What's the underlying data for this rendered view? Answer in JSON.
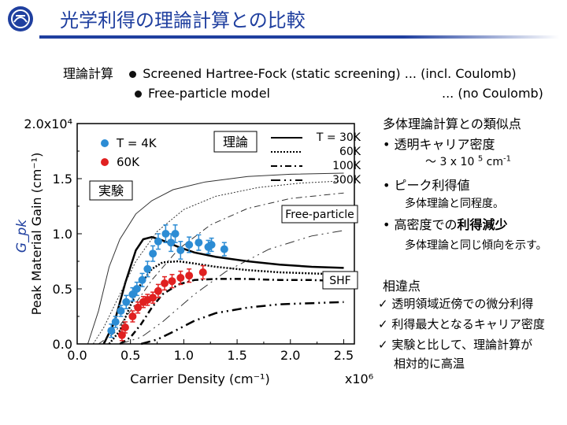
{
  "header": {
    "title": "光学利得の理論計算との比較"
  },
  "models": {
    "label": "理論計算",
    "shf": {
      "text": "Screened Hartree-Fock (static screening) ... (incl. Coulomb)"
    },
    "free": {
      "text": "Free-particle model",
      "note": "... (no Coulomb)"
    }
  },
  "chart_data": {
    "type": "line+scatter",
    "xlabel": "Carrier Density (cm⁻¹)",
    "ylabel": "Peak Material Gain (cm⁻¹)",
    "ylabel_symbol": "G_pk",
    "x_multiplier": "x10⁶",
    "y_multiplier_label": "2.0x10⁴",
    "xlim": [
      0,
      2.6
    ],
    "ylim": [
      0,
      2.0
    ],
    "xticks": [
      "0.0",
      "0.5",
      "1.0",
      "1.5",
      "2.0",
      "2.5"
    ],
    "yticks": [
      "0.0",
      "0.5",
      "1.0",
      "1.5",
      "2.0x10⁴"
    ],
    "theory_legend": {
      "title": "理論",
      "items": [
        "T = 30K",
        "60K",
        "100K",
        "300K"
      ]
    },
    "experiment_legend": {
      "title": "実験",
      "items": [
        {
          "label": "T = 4K",
          "color": "#2c8cd4"
        },
        {
          "label": "60K",
          "color": "#e02020"
        }
      ]
    },
    "labels": {
      "free_particle": "Free-particle",
      "shf": "SHF"
    },
    "experiment": [
      {
        "name": "T = 4K",
        "color": "#2c8cd4",
        "x": [
          0.32,
          0.36,
          0.41,
          0.46,
          0.52,
          0.56,
          0.61,
          0.66,
          0.71,
          0.76,
          0.83,
          0.88,
          0.92,
          0.97,
          1.05,
          1.14,
          1.23,
          1.26,
          1.38
        ],
        "y": [
          0.12,
          0.2,
          0.3,
          0.38,
          0.45,
          0.5,
          0.58,
          0.68,
          0.82,
          0.93,
          1.0,
          0.92,
          1.0,
          0.85,
          0.9,
          0.92,
          0.88,
          0.9,
          0.86
        ],
        "err": [
          0.06,
          0.05,
          0.05,
          0.06,
          0.06,
          0.06,
          0.06,
          0.07,
          0.07,
          0.07,
          0.08,
          0.08,
          0.08,
          0.08,
          0.07,
          0.07,
          0.06,
          0.06,
          0.06
        ]
      },
      {
        "name": "60K",
        "color": "#e02020",
        "x": [
          0.42,
          0.45,
          0.52,
          0.57,
          0.62,
          0.66,
          0.71,
          0.76,
          0.82,
          0.89,
          0.97,
          1.05,
          1.18
        ],
        "y": [
          0.08,
          0.15,
          0.25,
          0.33,
          0.38,
          0.4,
          0.42,
          0.48,
          0.55,
          0.57,
          0.6,
          0.62,
          0.65
        ],
        "err": [
          0.05,
          0.05,
          0.05,
          0.05,
          0.05,
          0.05,
          0.05,
          0.06,
          0.06,
          0.06,
          0.06,
          0.06,
          0.06
        ]
      }
    ],
    "theory": {
      "shf": [
        {
          "name": "T = 30K",
          "x": [
            0.25,
            0.35,
            0.45,
            0.55,
            0.62,
            0.7,
            0.8,
            0.95,
            1.1,
            1.3,
            1.6,
            1.9,
            2.2,
            2.5
          ],
          "y": [
            0.0,
            0.2,
            0.55,
            0.85,
            0.95,
            0.97,
            0.94,
            0.88,
            0.83,
            0.79,
            0.75,
            0.72,
            0.7,
            0.69
          ]
        },
        {
          "name": "60K",
          "x": [
            0.3,
            0.4,
            0.5,
            0.6,
            0.7,
            0.8,
            0.95,
            1.1,
            1.3,
            1.6,
            1.9,
            2.2,
            2.5
          ],
          "y": [
            0.0,
            0.12,
            0.35,
            0.55,
            0.68,
            0.74,
            0.75,
            0.73,
            0.7,
            0.67,
            0.65,
            0.64,
            0.63
          ]
        },
        {
          "name": "100K",
          "x": [
            0.4,
            0.5,
            0.6,
            0.7,
            0.8,
            0.95,
            1.1,
            1.3,
            1.6,
            1.9,
            2.2,
            2.5
          ],
          "y": [
            0.0,
            0.06,
            0.18,
            0.33,
            0.45,
            0.54,
            0.58,
            0.59,
            0.59,
            0.58,
            0.58,
            0.57
          ]
        },
        {
          "name": "300K",
          "x": [
            0.6,
            0.75,
            0.9,
            1.1,
            1.3,
            1.6,
            1.9,
            2.2,
            2.5
          ],
          "y": [
            0.0,
            0.04,
            0.11,
            0.21,
            0.28,
            0.33,
            0.36,
            0.37,
            0.38
          ]
        }
      ],
      "free": [
        {
          "name": "T = 30K",
          "x": [
            0.1,
            0.2,
            0.3,
            0.4,
            0.55,
            0.7,
            0.9,
            1.2,
            1.6,
            2.0,
            2.5
          ],
          "y": [
            0.0,
            0.3,
            0.7,
            0.95,
            1.18,
            1.3,
            1.4,
            1.47,
            1.52,
            1.54,
            1.55
          ]
        },
        {
          "name": "60K",
          "x": [
            0.15,
            0.25,
            0.4,
            0.55,
            0.75,
            1.0,
            1.3,
            1.7,
            2.1,
            2.5
          ],
          "y": [
            0.0,
            0.15,
            0.45,
            0.75,
            1.02,
            1.22,
            1.34,
            1.42,
            1.46,
            1.48
          ]
        },
        {
          "name": "100K",
          "x": [
            0.2,
            0.35,
            0.5,
            0.7,
            0.95,
            1.25,
            1.6,
            2.0,
            2.5
          ],
          "y": [
            0.0,
            0.1,
            0.3,
            0.58,
            0.86,
            1.08,
            1.23,
            1.32,
            1.37
          ]
        },
        {
          "name": "300K",
          "x": [
            0.4,
            0.6,
            0.8,
            1.1,
            1.4,
            1.8,
            2.2,
            2.5
          ],
          "y": [
            0.0,
            0.06,
            0.2,
            0.45,
            0.66,
            0.86,
            0.98,
            1.03
          ]
        }
      ]
    }
  },
  "right_panel": {
    "heading": "多体理論計算との類似点",
    "b1": "• 透明キャリア密度",
    "b1_sub_pre": "～ 3 x 10 ",
    "b1_sub_exp": "5",
    "b1_sub_unit": " cm",
    "b1_sub_unit_exp": "-1",
    "b2": "• ピーク利得値",
    "b2_sub": "多体理論と同程度。",
    "b3_pre": "• 高密度での",
    "b3_bold": "利得減少",
    "b3_sub": "多体理論と同じ傾向を示す。",
    "diff_heading": "相違点",
    "diffs": [
      "✓ 透明領域近傍での微分利得",
      "✓ 利得最大となるキャリア密度",
      "✓ 実験と比して、理論計算が"
    ],
    "diff_cont": "相対的に高温"
  }
}
